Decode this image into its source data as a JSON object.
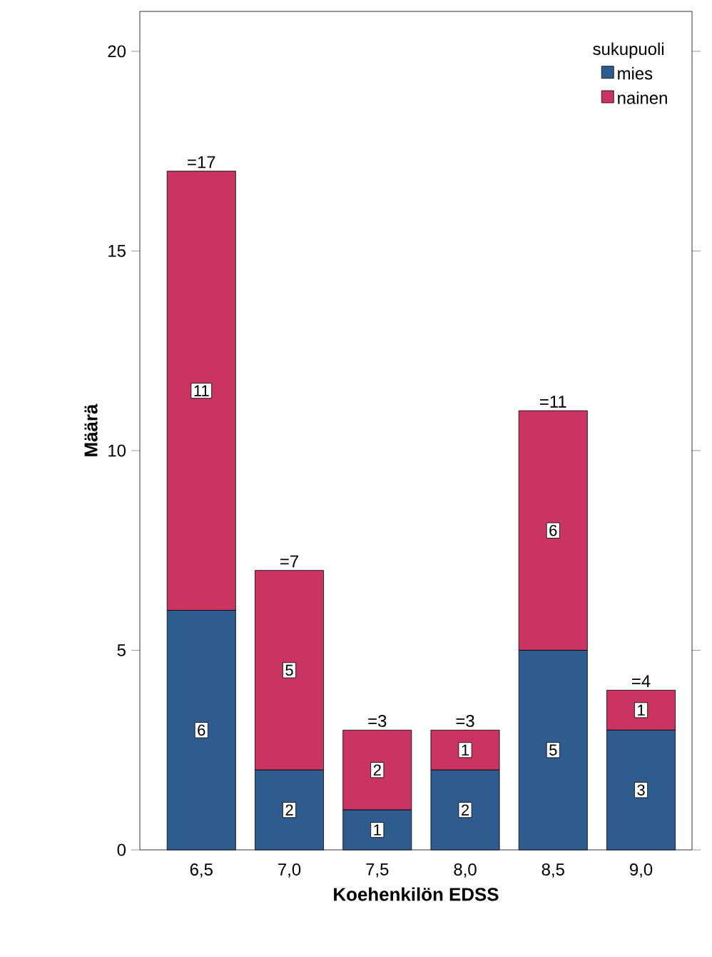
{
  "chart_data": {
    "type": "bar",
    "stacked": true,
    "xlabel": "Koehenkilön EDSS",
    "ylabel": "Määrä",
    "legend_title": "sukupuoli",
    "legend": "top right",
    "categories": [
      "6,5",
      "7,0",
      "7,5",
      "8,0",
      "8,5",
      "9,0"
    ],
    "series": [
      {
        "name": "mies",
        "color": "#2f5c8f",
        "values": [
          6,
          2,
          1,
          2,
          5,
          3
        ]
      },
      {
        "name": "nainen",
        "color": "#c93462",
        "values": [
          11,
          5,
          2,
          1,
          6,
          1
        ]
      }
    ],
    "totals": [
      "=17",
      "=7",
      "=3",
      "=3",
      "=11",
      "=4"
    ],
    "data_labels": true,
    "ylim": [
      0,
      21
    ],
    "yticks": [
      0,
      5,
      10,
      15,
      20
    ],
    "grid": false
  }
}
